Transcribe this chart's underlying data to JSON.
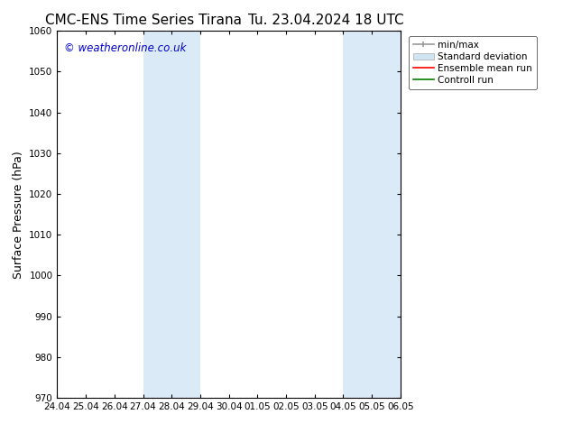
{
  "title_left": "CMC-ENS Time Series Tirana",
  "title_right": "Tu. 23.04.2024 18 UTC",
  "ylabel": "Surface Pressure (hPa)",
  "ylim": [
    970,
    1060
  ],
  "yticks": [
    970,
    980,
    990,
    1000,
    1010,
    1020,
    1030,
    1040,
    1050,
    1060
  ],
  "xtick_labels": [
    "24.04",
    "25.04",
    "26.04",
    "27.04",
    "28.04",
    "29.04",
    "30.04",
    "01.05",
    "02.05",
    "03.05",
    "04.05",
    "05.05",
    "06.05"
  ],
  "bg_color": "#ffffff",
  "plot_bg_color": "#ffffff",
  "shaded_bands": [
    {
      "xstart": 3,
      "xend": 5,
      "color": "#daeaf7"
    },
    {
      "xstart": 10,
      "xend": 12,
      "color": "#daeaf7"
    }
  ],
  "legend_entries": [
    {
      "label": "min/max",
      "color": "#aaaaaa",
      "lw": 1.2
    },
    {
      "label": "Standard deviation",
      "color": "#c8dff0",
      "lw": 5
    },
    {
      "label": "Ensemble mean run",
      "color": "#ff0000",
      "lw": 1.2
    },
    {
      "label": "Controll run",
      "color": "#008000",
      "lw": 1.2
    }
  ],
  "watermark": "© weatheronline.co.uk",
  "watermark_color": "#0000cc",
  "grid_color": "#cccccc",
  "tick_color": "#000000",
  "spine_color": "#000000",
  "title_fontsize": 11,
  "label_fontsize": 9,
  "tick_fontsize": 7.5,
  "legend_fontsize": 7.5
}
